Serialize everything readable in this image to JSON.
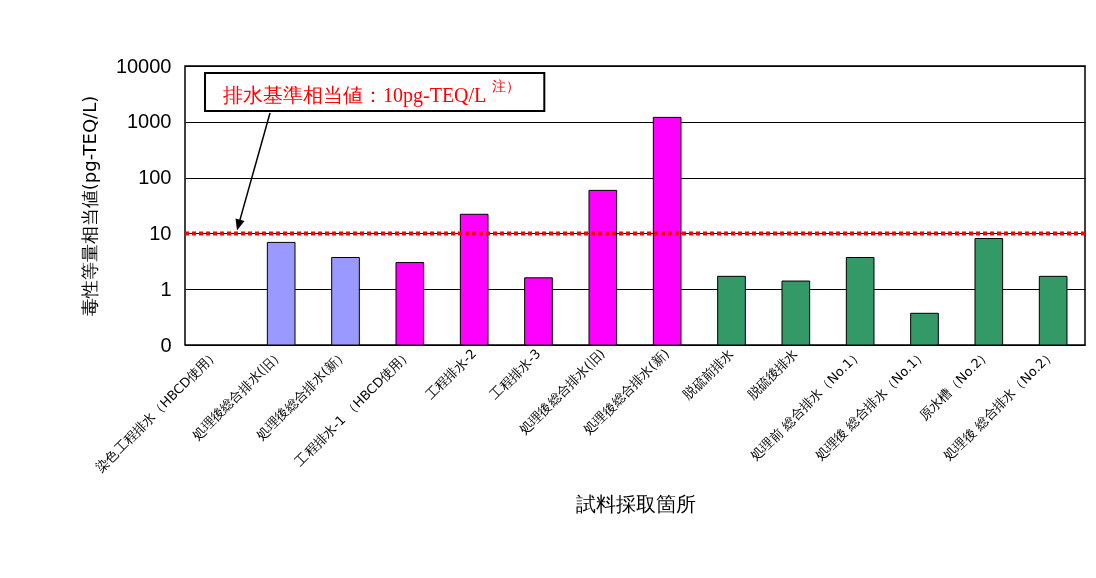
{
  "chart_data": {
    "type": "bar",
    "xlabel": "試料採取箇所",
    "ylabel": "毒性等量相当値(pg-TEQ/L)",
    "categories": [
      "染色工程排水（HBCD使用）",
      "処理後総合排水(旧）",
      "処理後総合排水(新）",
      "工程排水-1 （HBCD使用）",
      "工程排水-2",
      "工程排水-3",
      "処理後総合排水(旧)",
      "処理後総合排水(新)",
      "脱硫前排水",
      "脱硫後排水",
      "処理前 総合排水（No.1）",
      "処理後 総合排水（No.1）",
      "原水槽（No.2）",
      "処理後 総合排水（No.2）"
    ],
    "values": [
      null,
      6.9,
      3.7,
      3.0,
      22,
      1.6,
      59,
      1200,
      1.7,
      1.4,
      3.7,
      0.37,
      8.1,
      1.7
    ],
    "colors": [
      null,
      "#9999ff",
      "#9999ff",
      "#ff00ff",
      "#ff00ff",
      "#ff00ff",
      "#ff00ff",
      "#ff00ff",
      "#339966",
      "#339966",
      "#339966",
      "#339966",
      "#339966",
      "#339966"
    ],
    "log": true,
    "ylim": [
      0.1,
      10000
    ],
    "yticks": [
      {
        "value": 0.1,
        "label": "0"
      },
      1,
      10,
      100,
      1000,
      10000
    ],
    "grid": "y",
    "ref_lines": [
      {
        "axis": "y",
        "value": 10,
        "label": "排水基準相当値：10pg-TEQ/L$^{注）}$",
        "color": "#ff0000",
        "line_style": "dotted"
      }
    ]
  }
}
